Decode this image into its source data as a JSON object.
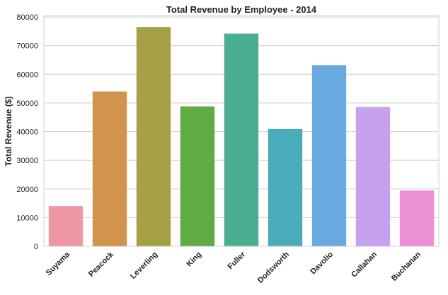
{
  "chart_data": {
    "type": "bar",
    "title": "Total Revenue by Employee - 2014",
    "xlabel": "",
    "ylabel": "Total Revenue ($)",
    "categories": [
      "Suyama",
      "Peacock",
      "Leverling",
      "King",
      "Fuller",
      "Dodsworth",
      "Davolio",
      "Callahan",
      "Buchanan"
    ],
    "values": [
      14000,
      54000,
      76500,
      48800,
      74200,
      40900,
      63200,
      48600,
      19500
    ],
    "colors": [
      "#ee96a2",
      "#d1944d",
      "#a4a043",
      "#61ab45",
      "#4aad91",
      "#4aabbb",
      "#69abe1",
      "#c6a1ed",
      "#eb90d5"
    ],
    "ylim": [
      0,
      80500
    ],
    "yticks": [
      0,
      10000,
      20000,
      30000,
      40000,
      50000,
      60000,
      70000,
      80000
    ],
    "grid": "horizontal",
    "legend": "none"
  }
}
